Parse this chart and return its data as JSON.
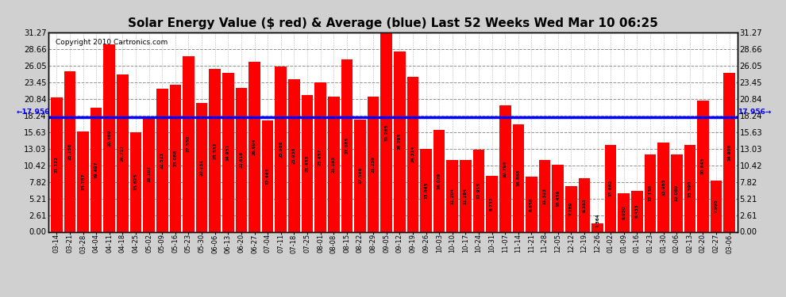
{
  "title": "Solar Energy Value ($ red) & Average (blue) Last 52 Weeks Wed Mar 10 06:25",
  "copyright": "Copyright 2010 Cartronics.com",
  "average": 17.956,
  "bar_color": "#ff0000",
  "avg_line_color": "#0000ff",
  "fig_bg_color": "#d0d0d0",
  "plot_bg_color": "#ffffff",
  "grid_color": "#888888",
  "yticks": [
    0.0,
    2.61,
    5.21,
    7.82,
    10.42,
    13.03,
    15.63,
    18.24,
    20.84,
    23.45,
    26.05,
    28.66,
    31.27
  ],
  "ylim": [
    0.0,
    31.27
  ],
  "dates": [
    "03-14",
    "03-21",
    "03-28",
    "04-04",
    "04-11",
    "04-18",
    "04-25",
    "05-02",
    "05-09",
    "05-16",
    "05-23",
    "05-30",
    "06-06",
    "06-13",
    "06-20",
    "06-27",
    "07-04",
    "07-11",
    "07-18",
    "07-25",
    "08-01",
    "08-08",
    "08-15",
    "08-22",
    "08-29",
    "09-05",
    "09-12",
    "09-19",
    "09-26",
    "10-03",
    "10-10",
    "10-17",
    "10-24",
    "10-31",
    "11-07",
    "11-14",
    "11-21",
    "11-28",
    "12-05",
    "12-12",
    "12-19",
    "12-26",
    "01-02",
    "01-09",
    "01-16",
    "01-23",
    "01-30",
    "02-06",
    "02-13",
    "02-20",
    "02-27",
    "03-06"
  ],
  "values": [
    21.122,
    25.156,
    15.787,
    19.497,
    29.469,
    24.717,
    15.625,
    18.107,
    22.523,
    23.088,
    27.55,
    20.251,
    25.532,
    24.951,
    22.616,
    26.694,
    17.443,
    25.986,
    23.938,
    21.453,
    23.457,
    21.193,
    27.085,
    17.598,
    21.239,
    31.265,
    28.295,
    24.314,
    13.045,
    16.029,
    11.204,
    11.284,
    12.915,
    8.737,
    19.794,
    16.868,
    8.658,
    11.323,
    10.459,
    7.189,
    8.383,
    1.364,
    13.662,
    6.03,
    6.433,
    12.13,
    13.965,
    12.08,
    13.59,
    20.643,
    7.995,
    24.906
  ]
}
